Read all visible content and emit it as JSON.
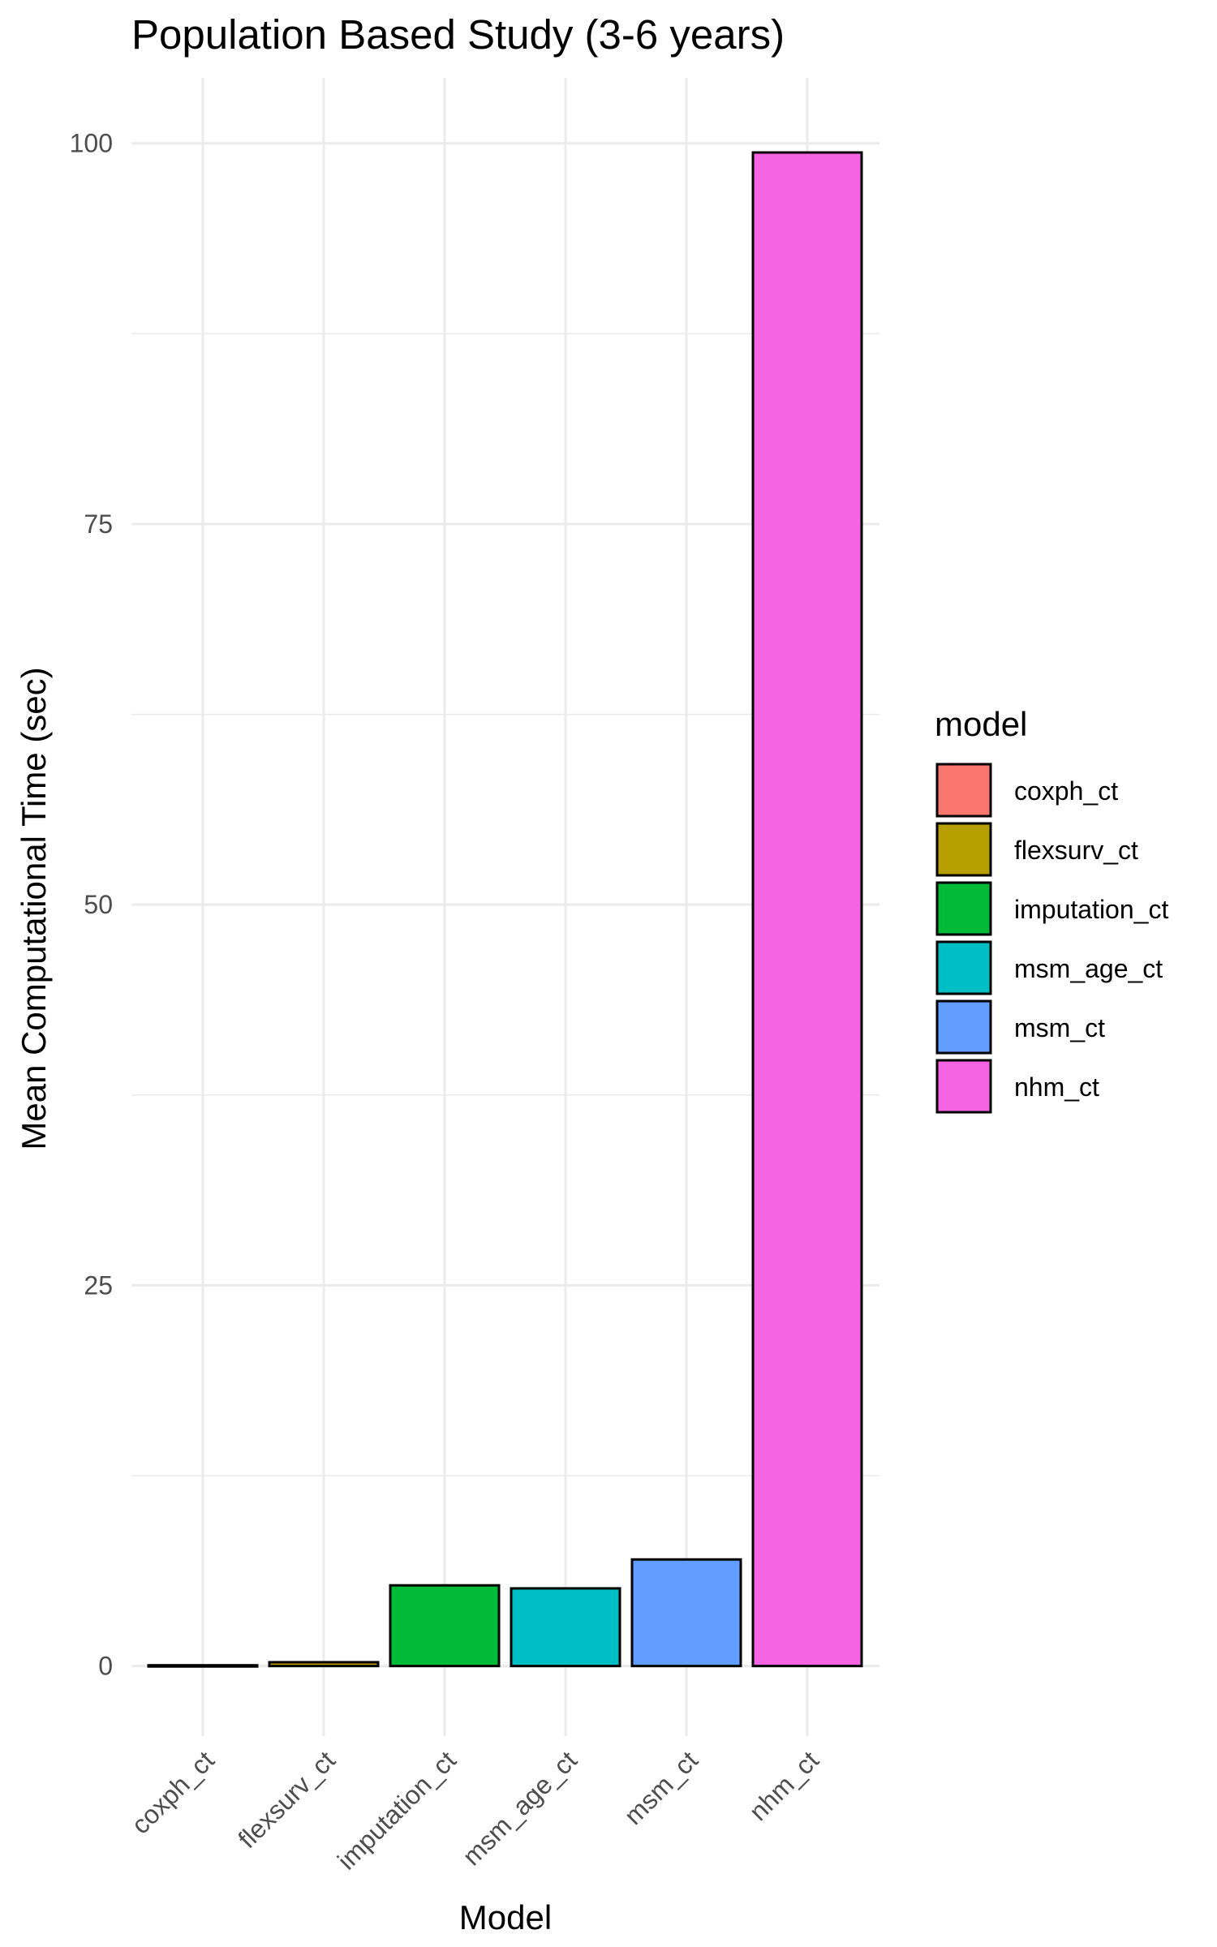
{
  "chart_data": {
    "type": "bar",
    "title": "Population Based Study (3-6 years)",
    "xlabel": "Model",
    "ylabel": "Mean Computational Time (sec)",
    "categories": [
      "coxph_ct",
      "flexsurv_ct",
      "imputation_ct",
      "msm_age_ct",
      "msm_ct",
      "nhm_ct"
    ],
    "values": [
      0.05,
      0.25,
      5.3,
      5.1,
      7.0,
      99.4
    ],
    "colors": [
      "#F8766D",
      "#B79F00",
      "#00BA38",
      "#00BFC4",
      "#619CFF",
      "#F564E3"
    ],
    "ylim": [
      -4.6,
      104.3
    ],
    "yticks": [
      0,
      25,
      50,
      75,
      100
    ],
    "ytick_labels": [
      "0",
      "25",
      "50",
      "75",
      "100"
    ],
    "grid": true,
    "legend": {
      "title": "model",
      "position": "right",
      "entries": [
        "coxph_ct",
        "flexsurv_ct",
        "imputation_ct",
        "msm_age_ct",
        "msm_ct",
        "nhm_ct"
      ]
    }
  }
}
